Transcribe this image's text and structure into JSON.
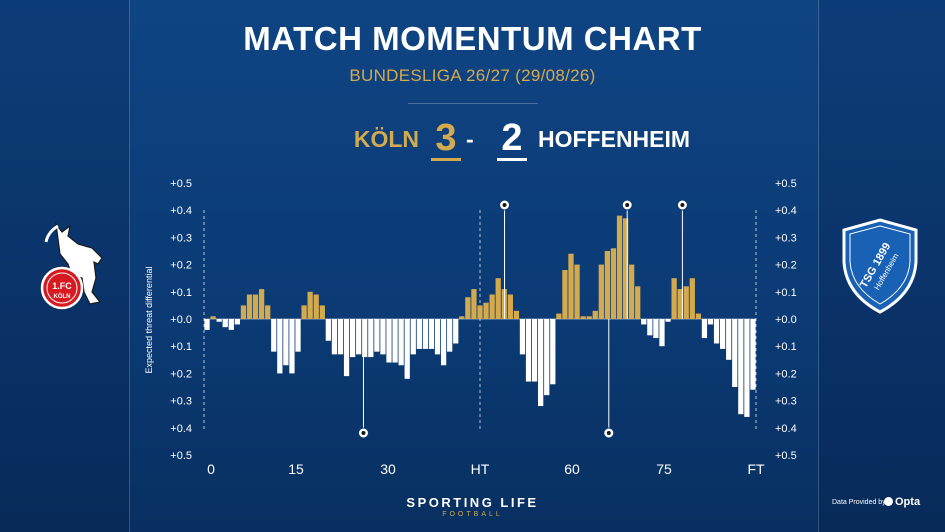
{
  "header": {
    "title": "MATCH MOMENTUM CHART",
    "subtitle": "BUNDESLIGA 26/27 (29/08/26)"
  },
  "score": {
    "home_team": "KÖLN",
    "home_goals": "3",
    "separator": "-",
    "away_goals": "2",
    "away_team": "HOFFENHEIM"
  },
  "logos": {
    "home_text": "1.FC",
    "home_sub": "KÖLN",
    "away_text": "TSG 1899",
    "away_sub": "Hoffenheim"
  },
  "footer": {
    "brand": "SPORTING LIFE",
    "brand_sub": "FOOTBALL",
    "credit": "Data Provided by",
    "provider": "Opta"
  },
  "colors": {
    "home": "#d4aa4e",
    "away": "#ffffff",
    "background": "#0b3a74"
  },
  "chart_data": {
    "type": "bar",
    "ylabel": "Expected threat differential",
    "ylim": [
      -0.5,
      0.5
    ],
    "y_ticks": [
      "+0.5",
      "+0.4",
      "+0.3",
      "+0.2",
      "+0.1",
      "+0.0",
      "+0.1",
      "+0.2",
      "+0.3",
      "+0.4",
      "+0.5"
    ],
    "x_ticks": [
      {
        "minute": 0,
        "label": "0"
      },
      {
        "minute": 15,
        "label": "15"
      },
      {
        "minute": 30,
        "label": "30"
      },
      {
        "minute": 45,
        "label": "HT"
      },
      {
        "minute": 60,
        "label": "60"
      },
      {
        "minute": 75,
        "label": "75"
      },
      {
        "minute": 90,
        "label": "FT"
      }
    ],
    "series": [
      {
        "values": [
          -0.04,
          0.01,
          -0.01,
          -0.03,
          -0.04,
          -0.02,
          0.05,
          0.09,
          0.09,
          0.11,
          0.05,
          -0.12,
          -0.2,
          -0.17,
          -0.2,
          -0.12,
          0.05,
          0.1,
          0.09,
          0.05,
          -0.08,
          -0.13,
          -0.13,
          -0.21,
          -0.14,
          -0.13,
          -0.14,
          -0.14,
          -0.12,
          -0.13,
          -0.16,
          -0.16,
          -0.17,
          -0.22,
          -0.13,
          -0.11,
          -0.11,
          -0.11,
          -0.13,
          -0.17,
          -0.12,
          -0.09,
          0.01,
          0.08,
          0.11,
          0.05,
          0.06,
          0.09,
          0.15,
          0.11,
          0.09,
          0.03,
          -0.13,
          -0.23,
          -0.23,
          -0.32,
          -0.28,
          -0.24,
          0.02,
          0.18,
          0.24,
          0.2,
          0.01,
          0.01,
          0.03,
          0.2,
          0.25,
          0.26,
          0.38,
          0.37,
          0.2,
          0.12,
          -0.02,
          -0.06,
          -0.07,
          -0.1,
          -0.01,
          0.15,
          0.11,
          0.12,
          0.15,
          0.02,
          -0.07,
          -0.02,
          -0.09,
          -0.11,
          -0.15,
          -0.25,
          -0.35,
          -0.36,
          -0.26
        ]
      }
    ],
    "events": [
      {
        "minute": 26,
        "team": "away",
        "type": "goal"
      },
      {
        "minute": 49,
        "team": "home",
        "type": "goal"
      },
      {
        "minute": 66,
        "team": "away",
        "type": "goal"
      },
      {
        "minute": 69,
        "team": "home",
        "type": "goal"
      },
      {
        "minute": 78,
        "team": "home",
        "type": "goal"
      }
    ]
  }
}
